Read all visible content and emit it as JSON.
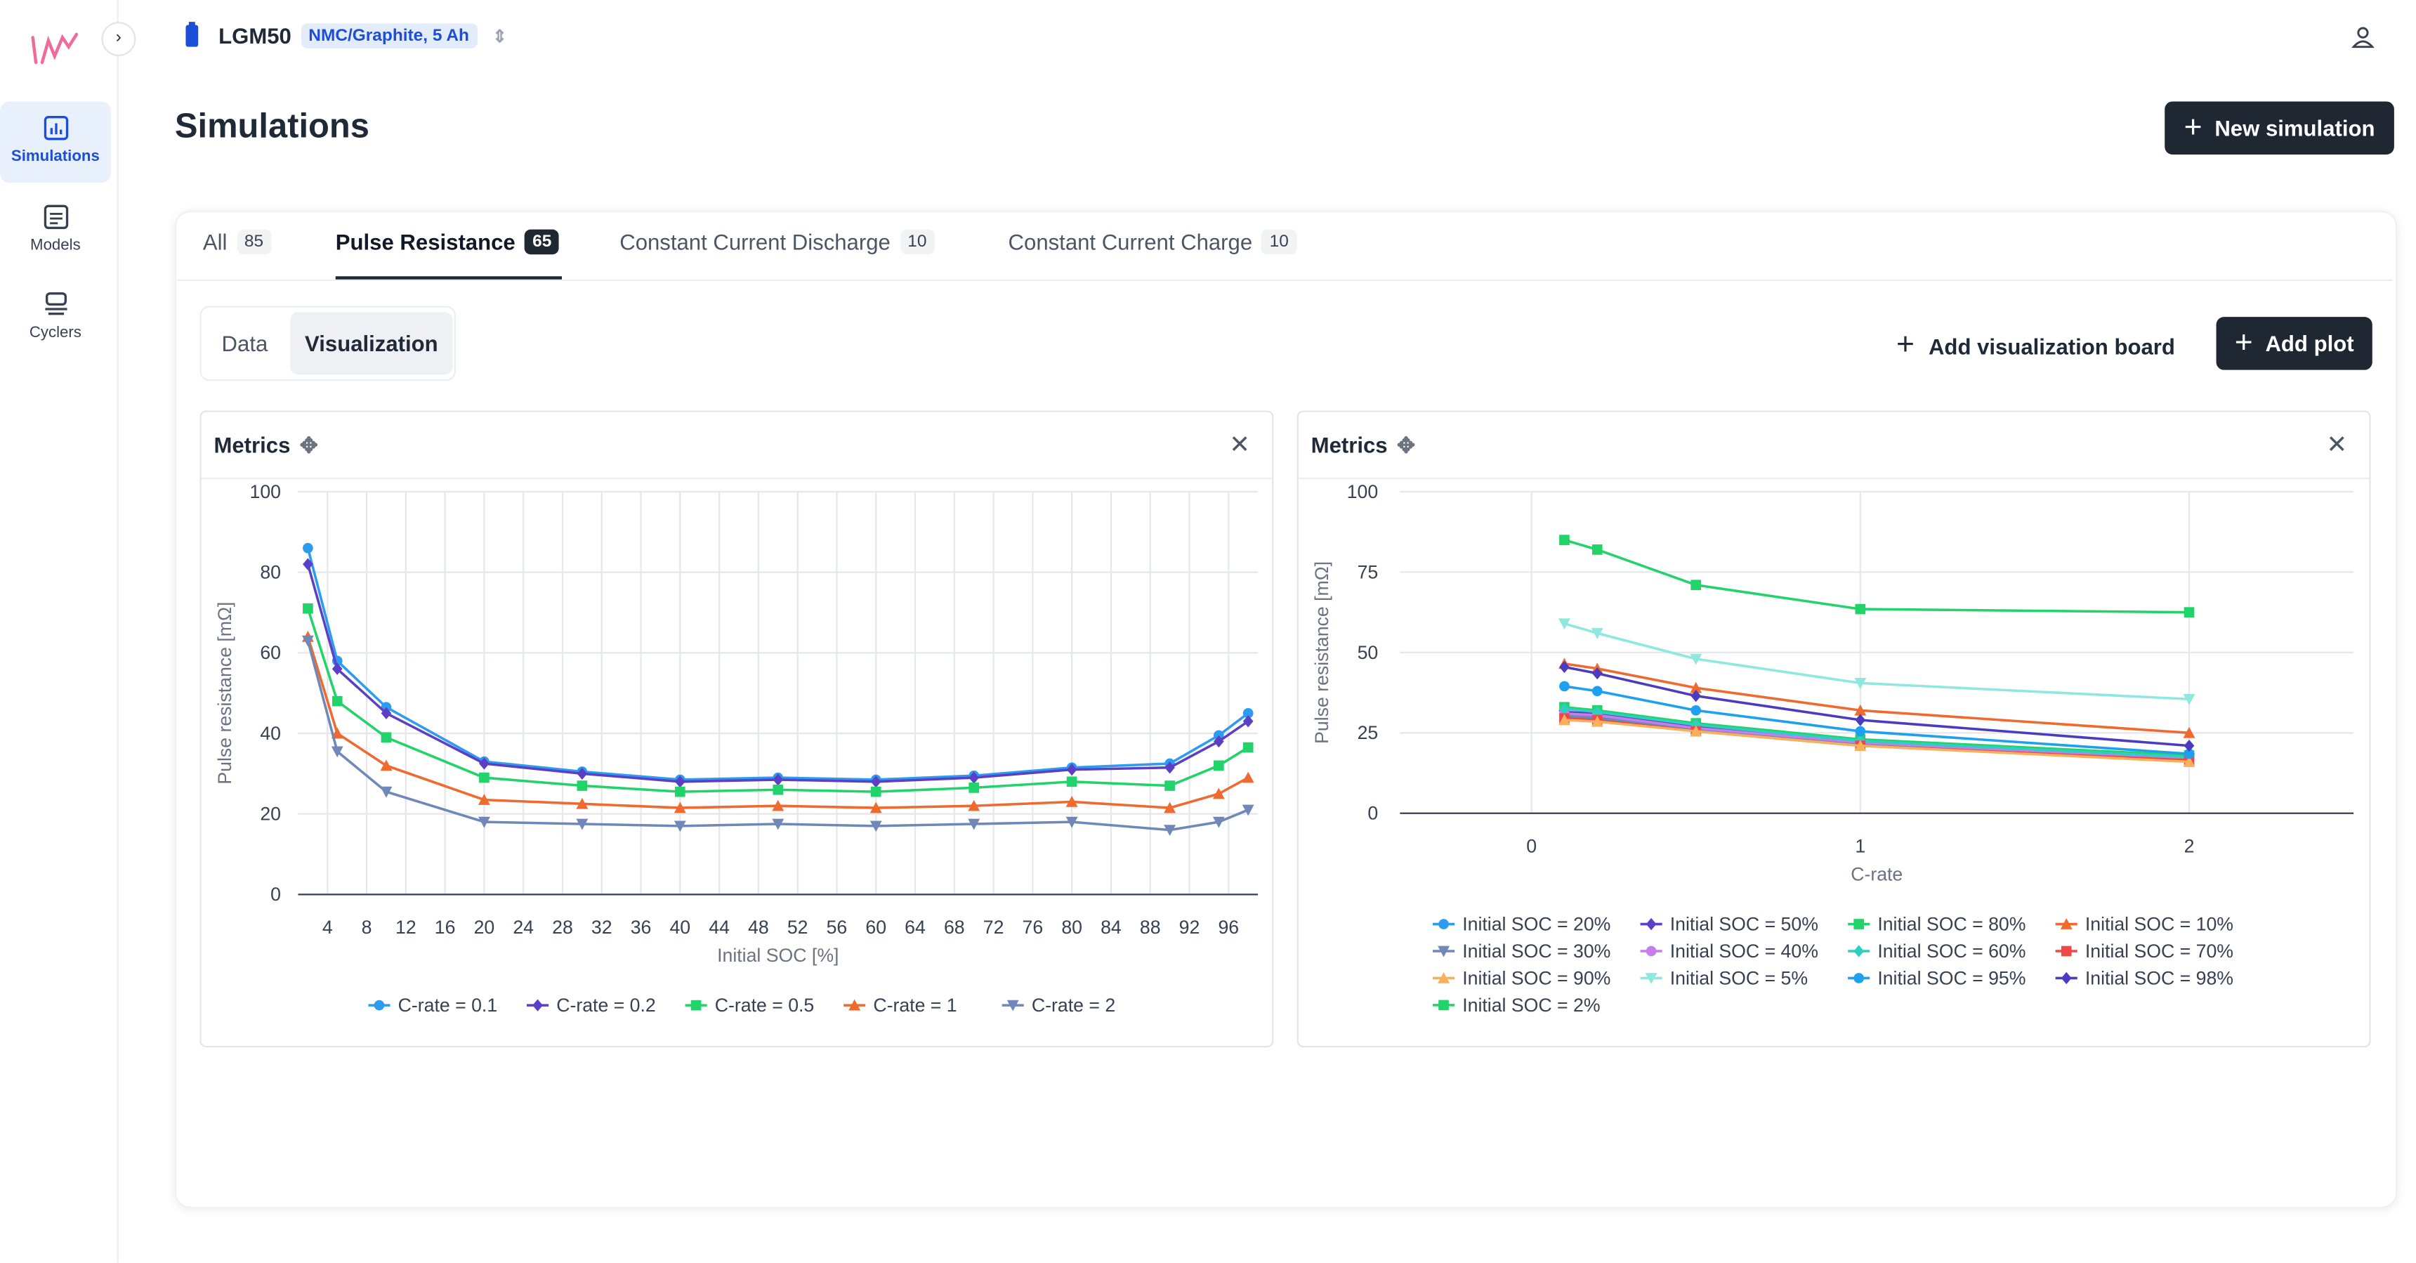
{
  "ui": {
    "nav": [
      "Simulations",
      "Models",
      "Cyclers"
    ],
    "cell": "LGM50",
    "cell_badge": "NMC/Graphite, 5 Ah",
    "page_title": "Simulations",
    "new_button": "New simulation",
    "tabs": [
      {
        "label": "All",
        "count": 85
      },
      {
        "label": "Pulse Resistance",
        "count": 65
      },
      {
        "label": "Constant Current Discharge",
        "count": 10
      },
      {
        "label": "Constant Current Charge",
        "count": 10
      }
    ],
    "subtabs": [
      "Data",
      "Visualization"
    ],
    "board_button": "Add visualization board",
    "plot_button": "Add plot",
    "panels": [
      "Metrics",
      "Metrics"
    ]
  },
  "chart_data": [
    {
      "type": "line",
      "x_label": "Initial SOC [%]",
      "y_label": "Pulse resistance [mΩ]",
      "x": [
        2,
        5,
        10,
        20,
        30,
        40,
        50,
        60,
        70,
        80,
        90,
        95,
        98
      ],
      "xlim": [
        1,
        99
      ],
      "xticks": [
        4,
        8,
        12,
        16,
        20,
        24,
        28,
        32,
        36,
        40,
        44,
        48,
        52,
        56,
        60,
        64,
        68,
        72,
        76,
        80,
        84,
        88,
        92,
        96
      ],
      "ylim": [
        0,
        100
      ],
      "yticks": [
        0,
        20,
        40,
        60,
        80,
        100
      ],
      "grid": true,
      "legend": "bottom",
      "series": [
        {
          "name": "C-rate = 0.1",
          "color": "#2d9cf0",
          "marker": "circle",
          "values": [
            86,
            58,
            46.5,
            33,
            30.5,
            28.5,
            29,
            28.5,
            29.5,
            31.5,
            32.5,
            39.5,
            45
          ]
        },
        {
          "name": "C-rate = 0.2",
          "color": "#5b3fc4",
          "marker": "diamond",
          "values": [
            82,
            56,
            45,
            32.5,
            30,
            28,
            28.5,
            28,
            29,
            31,
            31.5,
            38,
            43
          ]
        },
        {
          "name": "C-rate = 0.5",
          "color": "#22d36a",
          "marker": "square",
          "values": [
            71,
            48,
            39,
            29,
            27,
            25.5,
            26,
            25.5,
            26.5,
            28,
            27,
            32,
            36.5
          ]
        },
        {
          "name": "C-rate = 1",
          "color": "#f06a30",
          "marker": "triangle-up",
          "values": [
            64,
            40,
            32,
            23.5,
            22.5,
            21.5,
            22,
            21.5,
            22,
            23,
            21.5,
            25,
            29
          ]
        },
        {
          "name": "C-rate = 2",
          "color": "#6f88b8",
          "marker": "triangle-down",
          "values": [
            63,
            35.5,
            25.5,
            18,
            17.5,
            17,
            17.5,
            17,
            17.5,
            18,
            16,
            18,
            21
          ]
        }
      ]
    },
    {
      "type": "line",
      "x_label": "C-rate",
      "y_label": "Pulse resistance [mΩ]",
      "x": [
        0.1,
        0.2,
        0.5,
        1,
        2
      ],
      "xlim": [
        -0.4,
        2.5
      ],
      "xticks": [
        0,
        1,
        2
      ],
      "ylim": [
        0,
        100
      ],
      "yticks": [
        0,
        25,
        50,
        75,
        100
      ],
      "grid": true,
      "legend": "bottom",
      "series": [
        {
          "name": "Initial SOC = 20%",
          "color": "#2d9cf0",
          "marker": "circle",
          "values": [
            30,
            29.5,
            26,
            21.5,
            17
          ]
        },
        {
          "name": "Initial SOC = 50%",
          "color": "#5b3fc4",
          "marker": "diamond",
          "values": [
            31.5,
            31,
            27,
            22,
            17.5
          ]
        },
        {
          "name": "Initial SOC = 80%",
          "color": "#22d36a",
          "marker": "square",
          "values": [
            33,
            32,
            28,
            23,
            18
          ]
        },
        {
          "name": "Initial SOC = 10%",
          "color": "#f06a30",
          "marker": "triangle-up",
          "values": [
            46.5,
            45,
            39,
            32,
            25
          ]
        },
        {
          "name": "Initial SOC = 30%",
          "color": "#6f88b8",
          "marker": "triangle-down",
          "values": [
            30.5,
            30,
            26,
            21.5,
            17
          ]
        },
        {
          "name": "Initial SOC = 40%",
          "color": "#c77dea",
          "marker": "circle",
          "values": [
            31,
            30.5,
            26.5,
            22,
            17
          ]
        },
        {
          "name": "Initial SOC = 60%",
          "color": "#2ecfc0",
          "marker": "diamond",
          "values": [
            32.5,
            31.5,
            27.5,
            22.5,
            17.5
          ]
        },
        {
          "name": "Initial SOC = 70%",
          "color": "#f04848",
          "marker": "square",
          "values": [
            29.5,
            29,
            25.5,
            21,
            16.5
          ]
        },
        {
          "name": "Initial SOC = 90%",
          "color": "#f8b05a",
          "marker": "triangle-up",
          "values": [
            29,
            28.5,
            25.5,
            21,
            16
          ]
        },
        {
          "name": "Initial SOC = 5%",
          "color": "#8ee8e0",
          "marker": "triangle-down",
          "values": [
            59,
            56,
            48,
            40.5,
            35.5
          ]
        },
        {
          "name": "Initial SOC = 95%",
          "color": "#1ea0f0",
          "marker": "circle",
          "values": [
            39.5,
            38,
            32,
            25.5,
            18.5
          ]
        },
        {
          "name": "Initial SOC = 98%",
          "color": "#4a3cc0",
          "marker": "diamond",
          "values": [
            45.5,
            43.5,
            36.5,
            29,
            21
          ]
        },
        {
          "name": "Initial SOC = 2%",
          "color": "#22d36a",
          "marker": "square",
          "values": [
            85,
            82,
            71,
            63.5,
            62.5
          ]
        }
      ]
    }
  ]
}
